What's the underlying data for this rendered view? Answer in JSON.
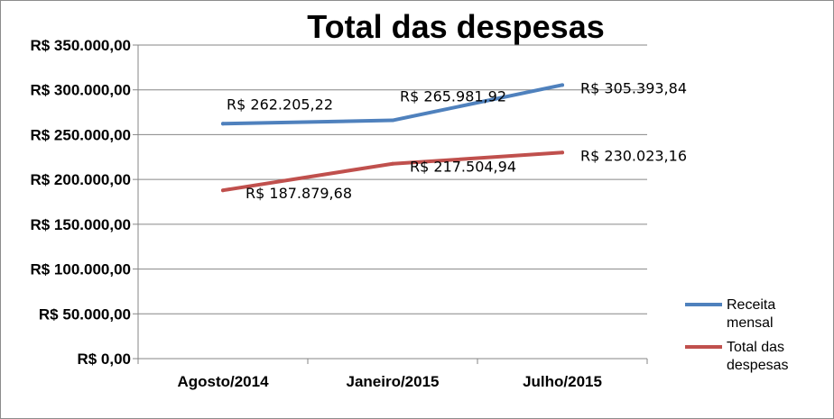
{
  "chart_data": {
    "type": "line",
    "title": "Total das despesas",
    "categories": [
      "Agosto/2014",
      "Janeiro/2015",
      "Julho/2015"
    ],
    "ylim": [
      0,
      350000
    ],
    "ytick_values": [
      0,
      50000,
      100000,
      150000,
      200000,
      250000,
      300000,
      350000
    ],
    "ytick_labels": [
      "R$ 0,00",
      "R$ 50.000,00",
      "R$ 100.000,00",
      "R$ 150.000,00",
      "R$ 200.000,00",
      "R$ 250.000,00",
      "R$ 300.000,00",
      "R$ 350.000,00"
    ],
    "grid": true,
    "legend": "right",
    "series": [
      {
        "name": "Receita mensal",
        "name_lines": [
          "Receita",
          "mensal"
        ],
        "color": "#4f81bd",
        "values": [
          262205.22,
          265981.92,
          305393.84
        ],
        "labels": [
          "R$ 262.205,22",
          "R$ 265.981,92",
          "R$ 305.393,84"
        ]
      },
      {
        "name": "Total das despesas",
        "name_lines": [
          "Total das",
          "despesas"
        ],
        "color": "#c0504d",
        "values": [
          187879.68,
          217504.94,
          230023.16
        ],
        "labels": [
          "R$ 187.879,68",
          "R$ 217.504,94",
          "R$ 230.023,16"
        ]
      }
    ]
  }
}
